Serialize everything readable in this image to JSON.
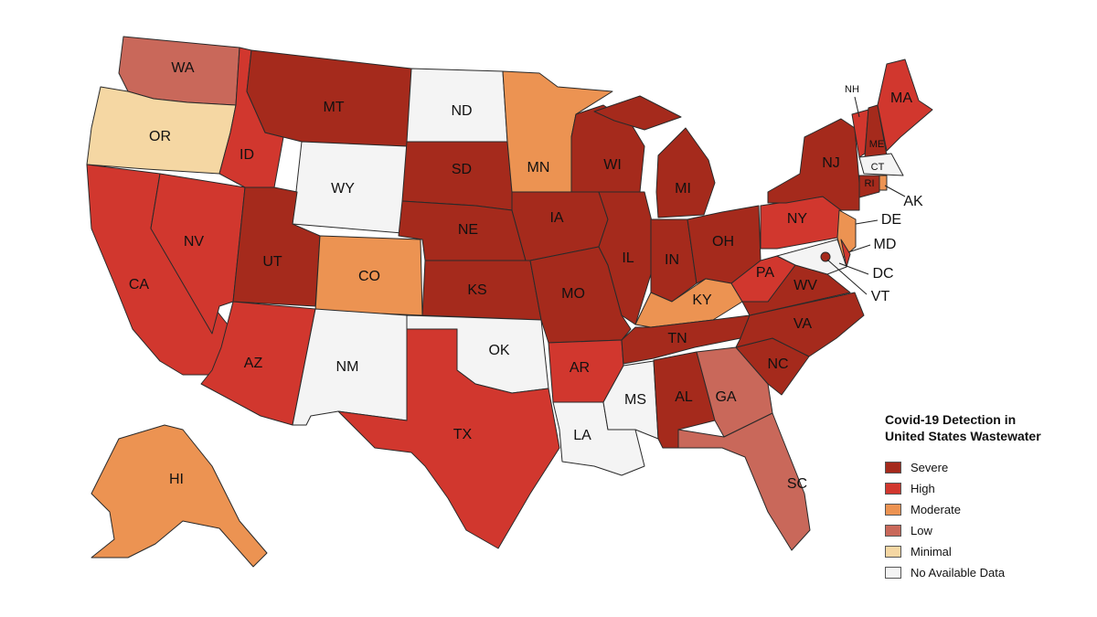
{
  "legend": {
    "title": "Covid-19 Detection in United States Wastewater",
    "items": [
      {
        "label": "Severe",
        "color": "#a52a1c"
      },
      {
        "label": "High",
        "color": "#d1372e"
      },
      {
        "label": "Moderate",
        "color": "#ec9352"
      },
      {
        "label": "Low",
        "color": "#c9685a"
      },
      {
        "label": "Minimal",
        "color": "#f5d7a3"
      },
      {
        "label": "No Available Data",
        "color": "#f4f4f4"
      }
    ]
  },
  "states": [
    {
      "label": "WA",
      "category": "Low"
    },
    {
      "label": "OR",
      "category": "Minimal"
    },
    {
      "label": "CA",
      "category": "High"
    },
    {
      "label": "NV",
      "category": "High"
    },
    {
      "label": "ID",
      "category": "High"
    },
    {
      "label": "MT",
      "category": "Severe"
    },
    {
      "label": "WY",
      "category": "No Available Data"
    },
    {
      "label": "UT",
      "category": "Severe"
    },
    {
      "label": "CO",
      "category": "Moderate"
    },
    {
      "label": "AZ",
      "category": "High"
    },
    {
      "label": "NM",
      "category": "No Available Data"
    },
    {
      "label": "ND",
      "category": "No Available Data"
    },
    {
      "label": "SD",
      "category": "Severe"
    },
    {
      "label": "NE",
      "category": "Severe"
    },
    {
      "label": "KS",
      "category": "Severe"
    },
    {
      "label": "OK",
      "category": "No Available Data"
    },
    {
      "label": "TX",
      "category": "High"
    },
    {
      "label": "MN",
      "category": "Moderate"
    },
    {
      "label": "IA",
      "category": "Severe"
    },
    {
      "label": "MO",
      "category": "Severe"
    },
    {
      "label": "AR",
      "category": "High"
    },
    {
      "label": "LA",
      "category": "No Available Data"
    },
    {
      "label": "MS",
      "category": "No Available Data"
    },
    {
      "label": "WI",
      "category": "Severe"
    },
    {
      "label": "IL",
      "category": "Severe"
    },
    {
      "label": "MI",
      "category": "Severe"
    },
    {
      "label": "IN",
      "category": "Severe"
    },
    {
      "label": "OH",
      "category": "Severe"
    },
    {
      "label": "KY",
      "category": "Moderate"
    },
    {
      "label": "TN",
      "category": "Severe"
    },
    {
      "label": "AL",
      "category": "Severe"
    },
    {
      "label": "GA",
      "category": "Low"
    },
    {
      "label": "SC",
      "category": "Low"
    },
    {
      "label": "NC",
      "category": "Severe"
    },
    {
      "label": "VA",
      "category": "Severe"
    },
    {
      "label": "WV",
      "category": "Severe"
    },
    {
      "label": "PA",
      "category": "High"
    },
    {
      "label": "NY",
      "category": "High"
    },
    {
      "label": "NJ",
      "category": "Severe"
    },
    {
      "label": "DE",
      "category": "Moderate"
    },
    {
      "label": "MD",
      "category": "High"
    },
    {
      "label": "DC",
      "category": "No Available Data"
    },
    {
      "label": "VT",
      "category": "Severe"
    },
    {
      "label": "NH",
      "category": "High"
    },
    {
      "label": "ME",
      "category": "Severe"
    },
    {
      "label": "MA",
      "category": "High"
    },
    {
      "label": "CT",
      "category": "No Available Data"
    },
    {
      "label": "RI",
      "category": "Severe"
    },
    {
      "label": "AK",
      "category": "Moderate"
    },
    {
      "label": "HI",
      "category": "Moderate"
    }
  ]
}
